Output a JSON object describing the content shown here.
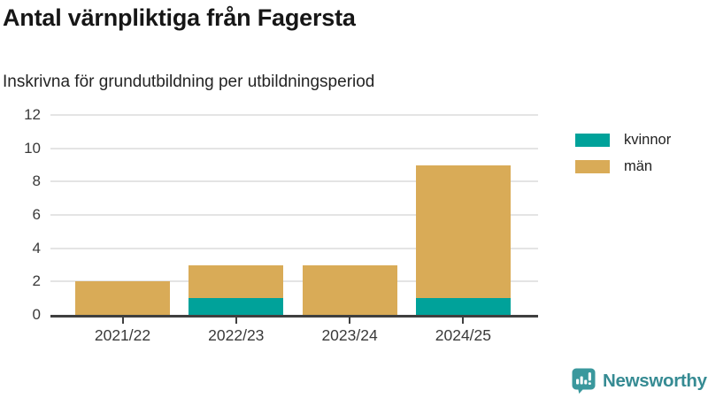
{
  "header": {
    "title": "Antal värnpliktiga från Fagersta",
    "subtitle": "Inskrivna för grundutbildning per utbildningsperiod"
  },
  "chart_data": {
    "type": "bar",
    "stacked": true,
    "title": "Antal värnpliktiga från Fagersta",
    "subtitle": "Inskrivna för grundutbildning per utbildningsperiod",
    "categories": [
      "2021/22",
      "2022/23",
      "2023/24",
      "2024/25"
    ],
    "series": [
      {
        "name": "kvinnor",
        "color": "#00a29a",
        "values": [
          0,
          1,
          0,
          1
        ]
      },
      {
        "name": "män",
        "color": "#d9ab57",
        "values": [
          2,
          2,
          3,
          8
        ]
      }
    ],
    "stack_totals": [
      2,
      3,
      3,
      9
    ],
    "xlabel": "",
    "ylabel": "",
    "ylim": [
      0,
      12
    ],
    "yticks": [
      0,
      2,
      4,
      6,
      8,
      10,
      12
    ],
    "grid": "horizontal",
    "legend_position": "right"
  },
  "legend": {
    "items": [
      {
        "label": "kvinnor"
      },
      {
        "label": "män"
      }
    ]
  },
  "footer": {
    "brand": "Newsworthy",
    "brand_color": "#368b93"
  },
  "colors": {
    "background": "#ffffff",
    "gridline": "#e4e4e4",
    "axis_line": "#3f3f3f",
    "tick_text": "#3a3a3a",
    "title_text": "#161616"
  }
}
